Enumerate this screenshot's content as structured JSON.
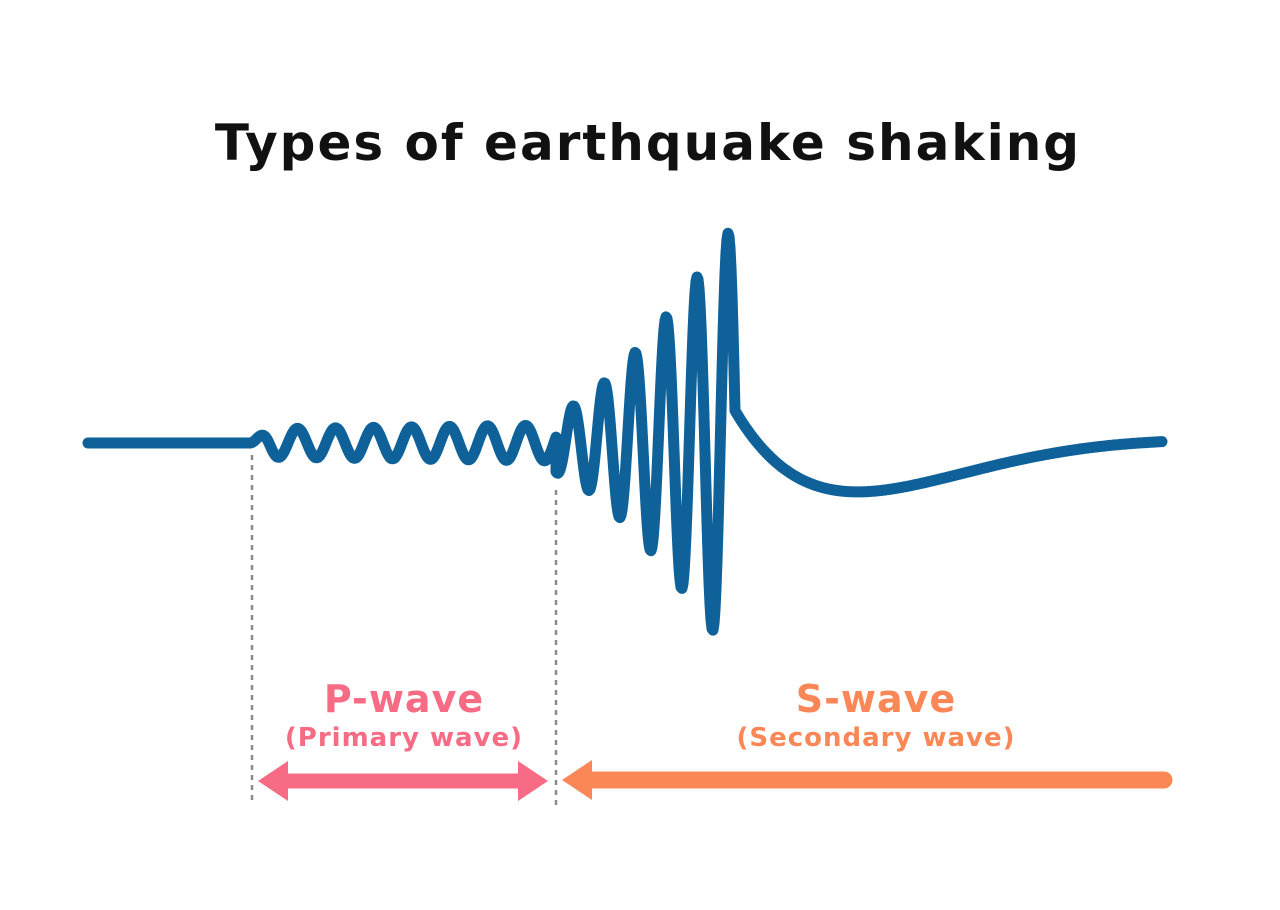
{
  "title": "Types of earthquake shaking",
  "p_wave": {
    "name": "P-wave",
    "full_name": "(Primary wave)",
    "color": "#f76b84"
  },
  "s_wave": {
    "name": "S-wave",
    "full_name": "(Secondary wave)",
    "color": "#fb8756"
  },
  "seismogram": {
    "color": "#0f6199",
    "guide_color": "#8a8a8a"
  }
}
